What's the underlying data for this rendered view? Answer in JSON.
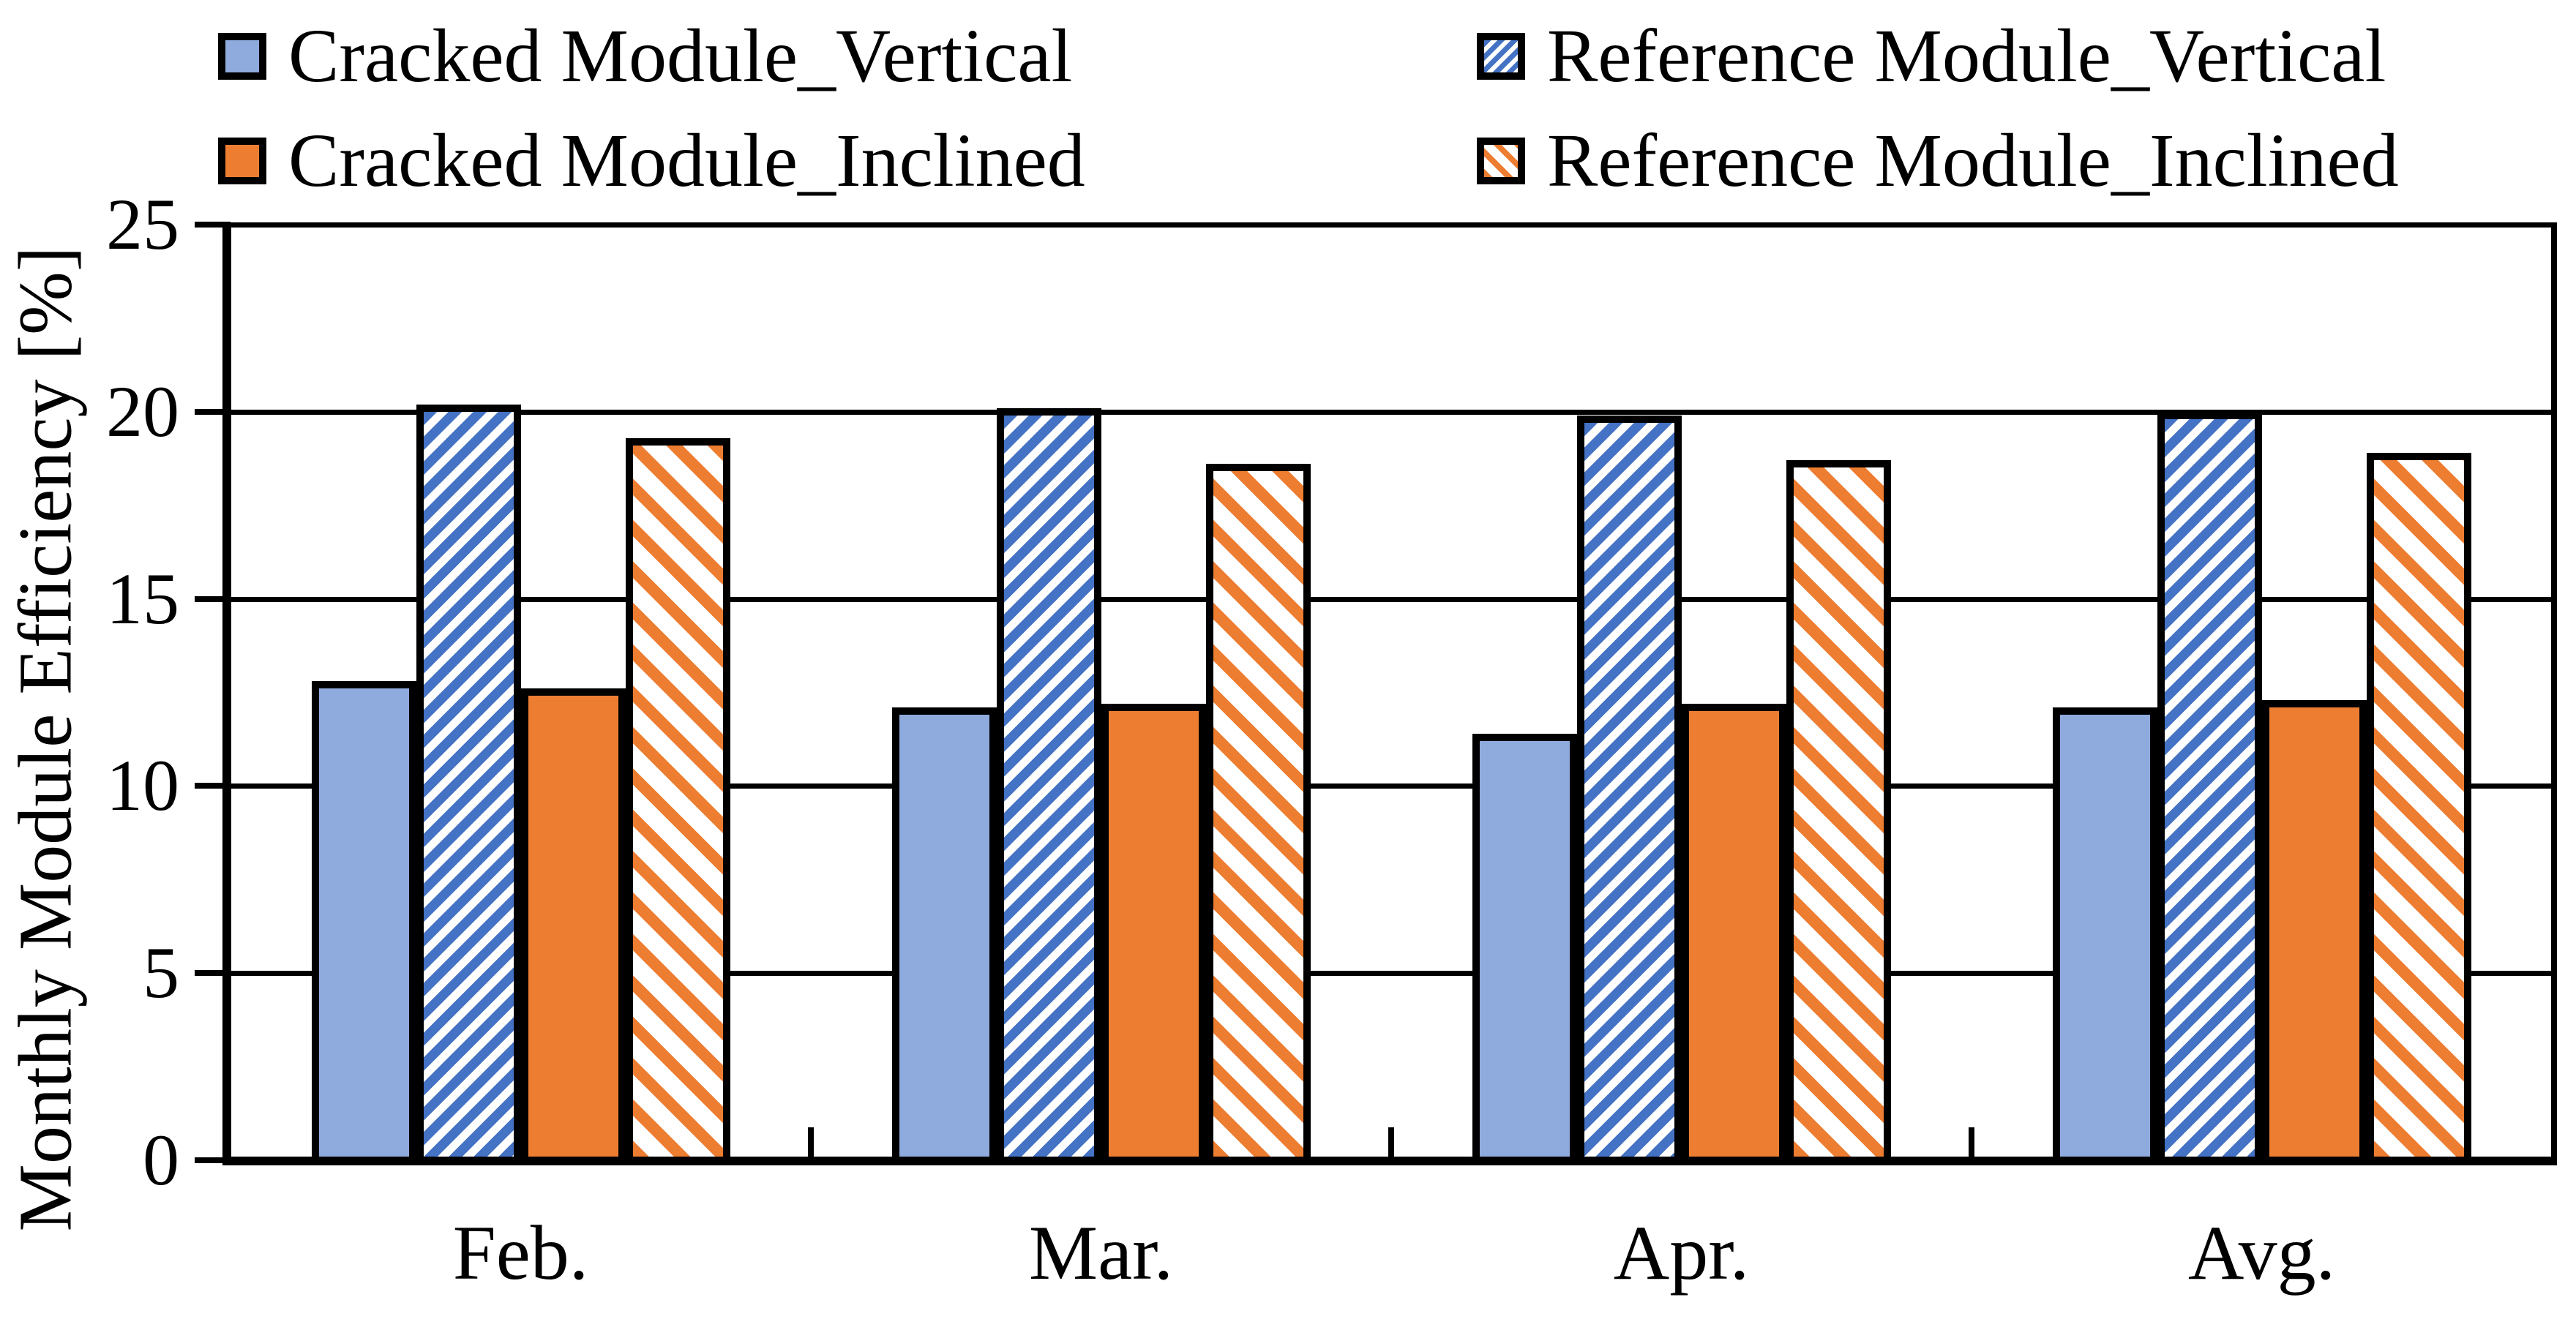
{
  "legend": {
    "items": [
      {
        "label": "Cracked Module_Vertical",
        "series_index": 0
      },
      {
        "label": "Cracked Module_Inclined",
        "series_index": 2
      },
      {
        "label": "Reference Module_Vertical",
        "series_index": 1
      },
      {
        "label": "Reference Module_Inclined",
        "series_index": 3
      }
    ]
  },
  "axes": {
    "y_title": "Monthly Module Efficiency [%]",
    "y_ticks": [
      "0",
      "5",
      "10",
      "15",
      "20",
      "25"
    ],
    "x_labels": [
      "Feb.",
      "Mar.",
      "Apr.",
      "Avg."
    ]
  },
  "colors": {
    "solid_blue": "#8FAADC",
    "hatch_blue": "#4472C4",
    "orange": "#ED7D31",
    "line_black": "#000000",
    "background": "#FFFFFF"
  },
  "chart_data": {
    "type": "bar",
    "categories": [
      "Feb.",
      "Mar.",
      "Apr.",
      "Avg."
    ],
    "series": [
      {
        "name": "Cracked Module_Vertical",
        "style": "solid",
        "color": "#8FAADC",
        "values": [
          12.8,
          12.1,
          11.4,
          12.1
        ]
      },
      {
        "name": "Reference Module_Vertical",
        "style": "hatch-forward",
        "color": "#4472C4",
        "values": [
          20.2,
          20.1,
          19.9,
          20.0
        ]
      },
      {
        "name": "Cracked Module_Inclined",
        "style": "solid",
        "color": "#ED7D31",
        "values": [
          12.6,
          12.2,
          12.2,
          12.3
        ]
      },
      {
        "name": "Reference Module_Inclined",
        "style": "hatch-back",
        "color": "#ED7D31",
        "values": [
          19.3,
          18.6,
          18.7,
          18.9
        ]
      }
    ],
    "title": "",
    "xlabel": "",
    "ylabel": "Monthly Module Efficiency [%]",
    "ylim": [
      0,
      25
    ],
    "ytick_step": 5,
    "grid": true,
    "legend_position": "top"
  }
}
